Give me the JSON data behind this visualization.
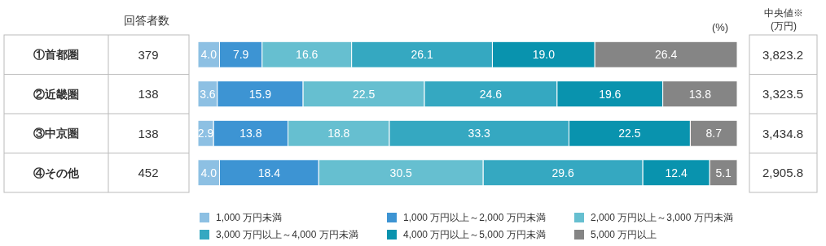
{
  "chart_data": {
    "type": "bar",
    "orientation": "horizontal",
    "stacked": true,
    "legend": "bottom",
    "xlim": [
      0,
      100
    ],
    "categories": [
      "①首都圏",
      "②近畿圏",
      "③中京圏",
      "④その他"
    ],
    "series": [
      {
        "name": "1,000 万円未満",
        "color": "#8dc0e3",
        "values": [
          4.0,
          3.6,
          2.9,
          4.0
        ],
        "value_labels": [
          "4.0",
          "3.6",
          "2.9",
          "4.0"
        ]
      },
      {
        "name": "1,000 万円以上～2,000 万円未満",
        "color": "#3d94d3",
        "values": [
          7.9,
          15.9,
          13.8,
          18.4
        ],
        "value_labels": [
          "7.9",
          "15.9",
          "13.8",
          "18.4"
        ]
      },
      {
        "name": "2,000 万円以上～3,000 万円未満",
        "color": "#66bfd0",
        "values": [
          16.6,
          22.5,
          18.8,
          30.5
        ],
        "value_labels": [
          "16.6",
          "22.5",
          "18.8",
          "30.5"
        ]
      },
      {
        "name": "3,000 万円以上～4,000 万円未満",
        "color": "#35a8c1",
        "values": [
          26.1,
          24.6,
          33.3,
          29.6
        ],
        "value_labels": [
          "26.1",
          "24.6",
          "33.3",
          "29.6"
        ]
      },
      {
        "name": "4,000 万円以上～5,000 万円未満",
        "color": "#0993ae",
        "values": [
          19.0,
          19.6,
          22.5,
          12.4
        ],
        "value_labels": [
          "19.0",
          "19.6",
          "22.5",
          "12.4"
        ]
      },
      {
        "name": "5,000 万円以上",
        "color": "#858585",
        "values": [
          26.4,
          13.8,
          8.7,
          5.1
        ],
        "value_labels": [
          "26.4",
          "13.8",
          "8.7",
          "5.1"
        ]
      }
    ],
    "annotations": [
      "(%)",
      "回答者数",
      "379",
      "138",
      "138",
      "452",
      "中央値※",
      "(万円)",
      "3,823.2",
      "3,323.5",
      "3,434.8",
      "2,905.8"
    ]
  }
}
